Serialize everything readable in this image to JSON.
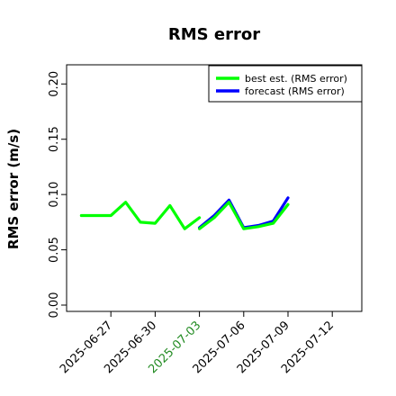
{
  "chart_data": {
    "type": "line",
    "title": "RMS error",
    "xlabel": "",
    "ylabel": "RMS error (m/s)",
    "ylim": [
      0,
      0.21
    ],
    "xlim": [
      "2025-06-24",
      "2025-07-14"
    ],
    "grid": false,
    "legend_position": "top-right",
    "yticks": [
      "0.00",
      "0.05",
      "0.10",
      "0.15",
      "0.20"
    ],
    "xticks": [
      {
        "label": "2025-06-27",
        "date": "2025-06-27",
        "color": "#000000"
      },
      {
        "label": "2025-06-30",
        "date": "2025-06-30",
        "color": "#000000"
      },
      {
        "label": "2025-07-03",
        "date": "2025-07-03",
        "color": "#228b22"
      },
      {
        "label": "2025-07-06",
        "date": "2025-07-06",
        "color": "#000000"
      },
      {
        "label": "2025-07-09",
        "date": "2025-07-09",
        "color": "#000000"
      },
      {
        "label": "2025-07-12",
        "date": "2025-07-12",
        "color": "#000000"
      }
    ],
    "series": [
      {
        "name": "best est. (RMS error)",
        "color": "#00ff00",
        "x": [
          "2025-06-25",
          "2025-06-26",
          "2025-06-27",
          "2025-06-28",
          "2025-06-29",
          "2025-06-30",
          "2025-07-01",
          "2025-07-02",
          "2025-07-03"
        ],
        "values": [
          0.081,
          0.081,
          0.081,
          0.093,
          0.075,
          0.074,
          0.09,
          0.069,
          0.079
        ]
      },
      {
        "name": "forecast (RMS error)",
        "color": "#0000ff",
        "x": [
          "2025-07-03",
          "2025-07-04",
          "2025-07-05",
          "2025-07-06",
          "2025-07-07",
          "2025-07-08",
          "2025-07-09"
        ],
        "values": [
          0.07,
          0.081,
          0.095,
          0.07,
          0.072,
          0.076,
          0.097
        ]
      },
      {
        "name": "",
        "color": "#00ff00",
        "x": [
          "2025-07-03",
          "2025-07-04",
          "2025-07-05",
          "2025-07-06",
          "2025-07-07",
          "2025-07-08",
          "2025-07-09"
        ],
        "values": [
          0.069,
          0.079,
          0.093,
          0.069,
          0.071,
          0.074,
          0.091
        ]
      }
    ]
  }
}
